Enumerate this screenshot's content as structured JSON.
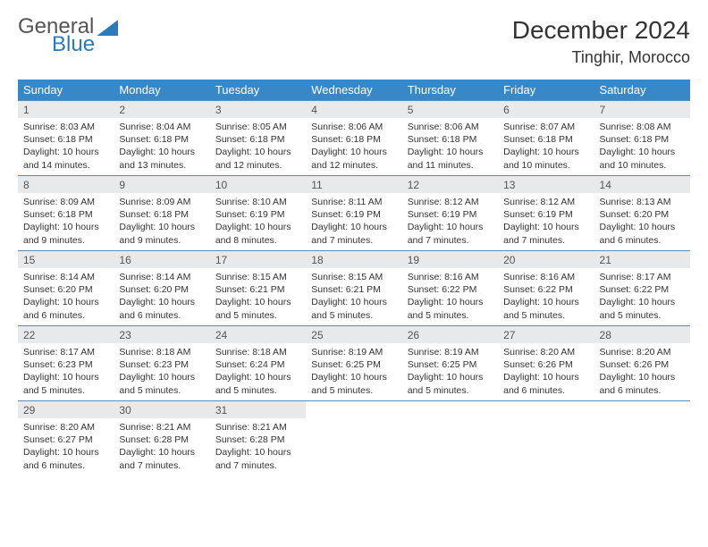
{
  "logo": {
    "top": "General",
    "bottom": "Blue"
  },
  "title": "December 2024",
  "location": "Tinghir, Morocco",
  "colors": {
    "header_bg": "#3888c8",
    "daynum_bg": "#e7e9eb",
    "cell_border": "#5a8db8",
    "logo_blue": "#2b7bba",
    "logo_gray": "#555555"
  },
  "weekdays": [
    "Sunday",
    "Monday",
    "Tuesday",
    "Wednesday",
    "Thursday",
    "Friday",
    "Saturday"
  ],
  "weeks": [
    [
      {
        "n": "1",
        "sr": "8:03 AM",
        "ss": "6:18 PM",
        "dh": "10",
        "dm": "14"
      },
      {
        "n": "2",
        "sr": "8:04 AM",
        "ss": "6:18 PM",
        "dh": "10",
        "dm": "13"
      },
      {
        "n": "3",
        "sr": "8:05 AM",
        "ss": "6:18 PM",
        "dh": "10",
        "dm": "12"
      },
      {
        "n": "4",
        "sr": "8:06 AM",
        "ss": "6:18 PM",
        "dh": "10",
        "dm": "12"
      },
      {
        "n": "5",
        "sr": "8:06 AM",
        "ss": "6:18 PM",
        "dh": "10",
        "dm": "11"
      },
      {
        "n": "6",
        "sr": "8:07 AM",
        "ss": "6:18 PM",
        "dh": "10",
        "dm": "10"
      },
      {
        "n": "7",
        "sr": "8:08 AM",
        "ss": "6:18 PM",
        "dh": "10",
        "dm": "10"
      }
    ],
    [
      {
        "n": "8",
        "sr": "8:09 AM",
        "ss": "6:18 PM",
        "dh": "10",
        "dm": "9"
      },
      {
        "n": "9",
        "sr": "8:09 AM",
        "ss": "6:18 PM",
        "dh": "10",
        "dm": "9"
      },
      {
        "n": "10",
        "sr": "8:10 AM",
        "ss": "6:19 PM",
        "dh": "10",
        "dm": "8"
      },
      {
        "n": "11",
        "sr": "8:11 AM",
        "ss": "6:19 PM",
        "dh": "10",
        "dm": "7"
      },
      {
        "n": "12",
        "sr": "8:12 AM",
        "ss": "6:19 PM",
        "dh": "10",
        "dm": "7"
      },
      {
        "n": "13",
        "sr": "8:12 AM",
        "ss": "6:19 PM",
        "dh": "10",
        "dm": "7"
      },
      {
        "n": "14",
        "sr": "8:13 AM",
        "ss": "6:20 PM",
        "dh": "10",
        "dm": "6"
      }
    ],
    [
      {
        "n": "15",
        "sr": "8:14 AM",
        "ss": "6:20 PM",
        "dh": "10",
        "dm": "6"
      },
      {
        "n": "16",
        "sr": "8:14 AM",
        "ss": "6:20 PM",
        "dh": "10",
        "dm": "6"
      },
      {
        "n": "17",
        "sr": "8:15 AM",
        "ss": "6:21 PM",
        "dh": "10",
        "dm": "5"
      },
      {
        "n": "18",
        "sr": "8:15 AM",
        "ss": "6:21 PM",
        "dh": "10",
        "dm": "5"
      },
      {
        "n": "19",
        "sr": "8:16 AM",
        "ss": "6:22 PM",
        "dh": "10",
        "dm": "5"
      },
      {
        "n": "20",
        "sr": "8:16 AM",
        "ss": "6:22 PM",
        "dh": "10",
        "dm": "5"
      },
      {
        "n": "21",
        "sr": "8:17 AM",
        "ss": "6:22 PM",
        "dh": "10",
        "dm": "5"
      }
    ],
    [
      {
        "n": "22",
        "sr": "8:17 AM",
        "ss": "6:23 PM",
        "dh": "10",
        "dm": "5"
      },
      {
        "n": "23",
        "sr": "8:18 AM",
        "ss": "6:23 PM",
        "dh": "10",
        "dm": "5"
      },
      {
        "n": "24",
        "sr": "8:18 AM",
        "ss": "6:24 PM",
        "dh": "10",
        "dm": "5"
      },
      {
        "n": "25",
        "sr": "8:19 AM",
        "ss": "6:25 PM",
        "dh": "10",
        "dm": "5"
      },
      {
        "n": "26",
        "sr": "8:19 AM",
        "ss": "6:25 PM",
        "dh": "10",
        "dm": "5"
      },
      {
        "n": "27",
        "sr": "8:20 AM",
        "ss": "6:26 PM",
        "dh": "10",
        "dm": "6"
      },
      {
        "n": "28",
        "sr": "8:20 AM",
        "ss": "6:26 PM",
        "dh": "10",
        "dm": "6"
      }
    ],
    [
      {
        "n": "29",
        "sr": "8:20 AM",
        "ss": "6:27 PM",
        "dh": "10",
        "dm": "6"
      },
      {
        "n": "30",
        "sr": "8:21 AM",
        "ss": "6:28 PM",
        "dh": "10",
        "dm": "7"
      },
      {
        "n": "31",
        "sr": "8:21 AM",
        "ss": "6:28 PM",
        "dh": "10",
        "dm": "7"
      },
      null,
      null,
      null,
      null
    ]
  ],
  "labels": {
    "sunrise": "Sunrise:",
    "sunset": "Sunset:",
    "daylight": "Daylight:",
    "hours": "hours",
    "and": "and",
    "minutes": "minutes."
  }
}
